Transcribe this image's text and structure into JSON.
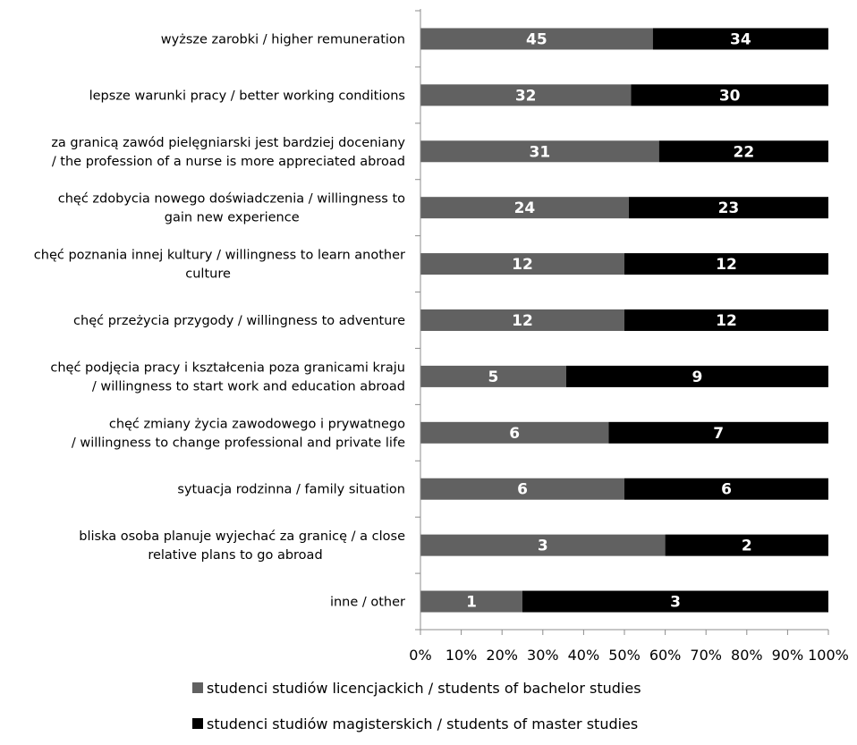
{
  "chart_data": {
    "type": "bar",
    "orientation": "horizontal",
    "stacked": "percent",
    "categories": [
      [
        "wyższe zarobki / higher remuneration"
      ],
      [
        "lepsze warunki pracy / better working conditions"
      ],
      [
        "za granicą zawód pielęgniarski jest bardziej doceniany",
        "/ the profession of a nurse is more appreciated abroad"
      ],
      [
        "chęć zdobycia nowego doświadczenia / willingness to",
        "gain new experience"
      ],
      [
        "chęć poznania innej kultury / willingness to learn another",
        "culture"
      ],
      [
        "chęć przeżycia przygody / willingness to adventure"
      ],
      [
        "chęć podjęcia pracy i kształcenia poza granicami kraju",
        "/ willingness to start work and education abroad"
      ],
      [
        "chęć zmiany życia zawodowego i prywatnego",
        "/ willingness to change professional and private life"
      ],
      [
        "sytuacja rodzinna / family situation"
      ],
      [
        "bliska osoba planuje wyjechać za granicę / a close",
        "relative plans to go abroad"
      ],
      [
        "inne / other"
      ]
    ],
    "series": [
      {
        "name": "studenci studiów licencjackich / students of bachelor studies",
        "color": "#616161",
        "values": [
          45,
          32,
          31,
          24,
          12,
          12,
          5,
          6,
          6,
          3,
          1
        ]
      },
      {
        "name": "studenci studiów magisterskich / students of master studies",
        "color": "#000000",
        "values": [
          34,
          30,
          22,
          23,
          12,
          12,
          9,
          7,
          6,
          2,
          3
        ]
      }
    ],
    "x_ticks": [
      "0%",
      "10%",
      "20%",
      "30%",
      "40%",
      "50%",
      "60%",
      "70%",
      "80%",
      "90%",
      "100%"
    ],
    "xlim": [
      0,
      100
    ],
    "xlabel": "",
    "ylabel": "",
    "title": "",
    "grid": false,
    "legend_position": "bottom"
  }
}
